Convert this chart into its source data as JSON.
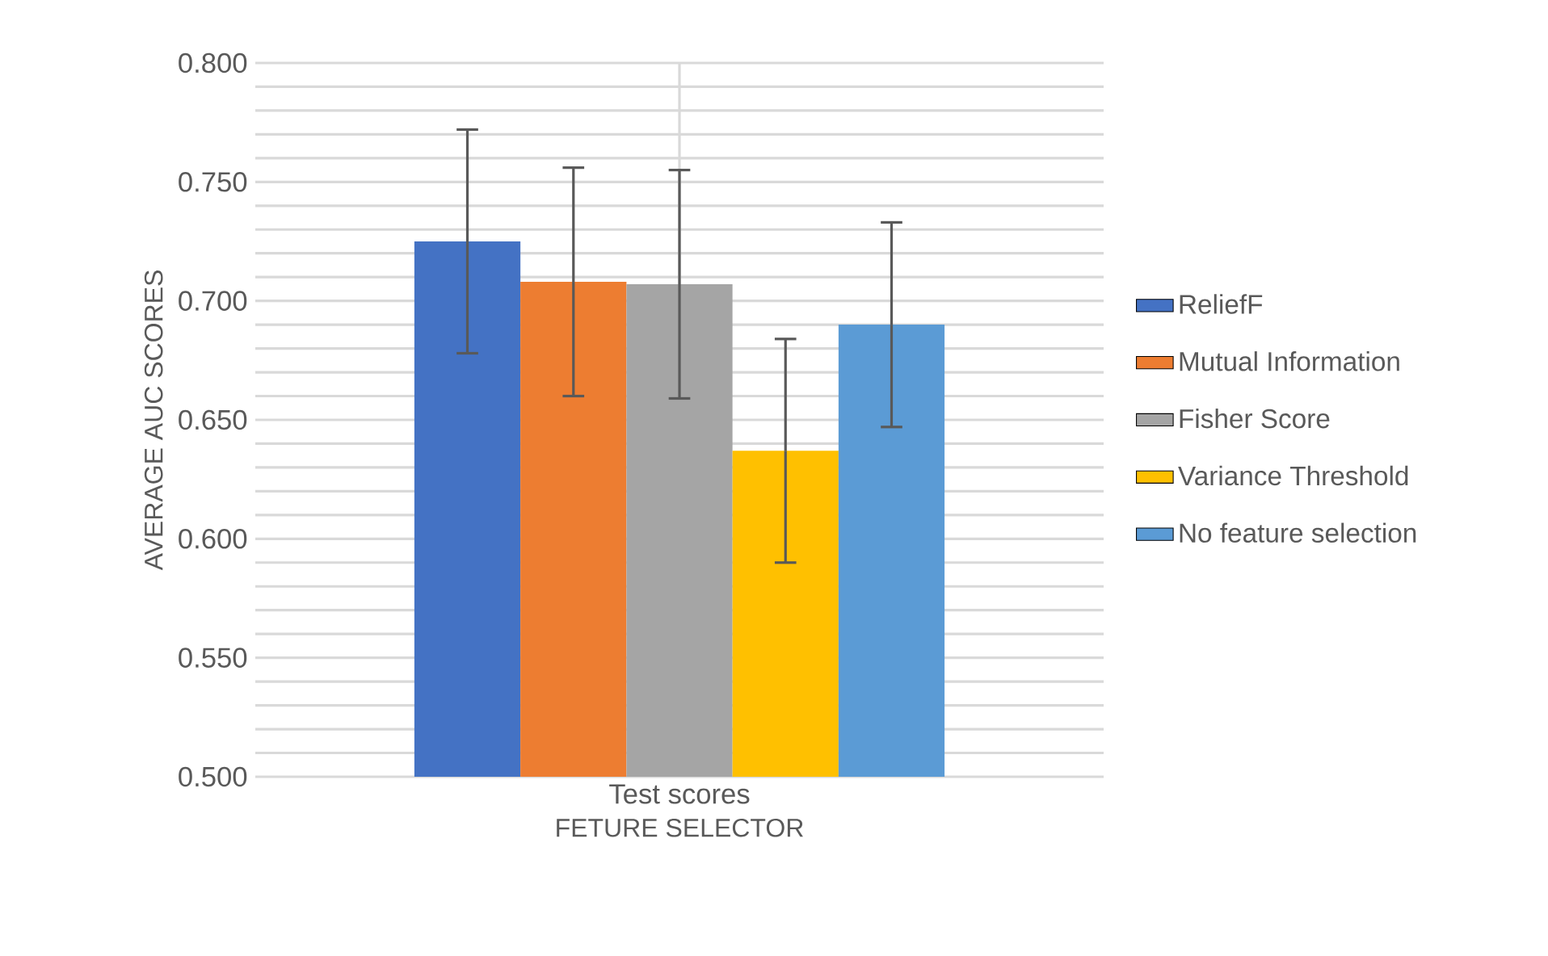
{
  "chart_data": {
    "type": "bar",
    "xlabel": "FETURE SELECTOR",
    "ylabel": "AVERAGE AUC SCORES",
    "categories": [
      "Test scores"
    ],
    "series": [
      {
        "name": "ReliefF",
        "color": "#4472c4",
        "values": [
          0.725
        ],
        "errors": [
          0.047
        ]
      },
      {
        "name": "Mutual Information",
        "color": "#ed7d31",
        "values": [
          0.708
        ],
        "errors": [
          0.048
        ]
      },
      {
        "name": "Fisher Score",
        "color": "#a5a5a5",
        "values": [
          0.707
        ],
        "errors": [
          0.048
        ]
      },
      {
        "name": "Variance Threshold",
        "color": "#ffc000",
        "values": [
          0.637
        ],
        "errors": [
          0.047
        ]
      },
      {
        "name": "No feature selection",
        "color": "#5b9bd5",
        "values": [
          0.69
        ],
        "errors": [
          0.043
        ]
      }
    ],
    "ylim": [
      0.5,
      0.8
    ],
    "yticks": [
      {
        "value": 0.5,
        "label": "0.500"
      },
      {
        "value": 0.51,
        "label": null
      },
      {
        "value": 0.52,
        "label": null
      },
      {
        "value": 0.53,
        "label": null
      },
      {
        "value": 0.54,
        "label": null
      },
      {
        "value": 0.55,
        "label": "0.550"
      },
      {
        "value": 0.56,
        "label": null
      },
      {
        "value": 0.57,
        "label": null
      },
      {
        "value": 0.58,
        "label": null
      },
      {
        "value": 0.59,
        "label": null
      },
      {
        "value": 0.6,
        "label": "0.600"
      },
      {
        "value": 0.61,
        "label": null
      },
      {
        "value": 0.62,
        "label": null
      },
      {
        "value": 0.63,
        "label": null
      },
      {
        "value": 0.64,
        "label": null
      },
      {
        "value": 0.65,
        "label": "0.650"
      },
      {
        "value": 0.66,
        "label": null
      },
      {
        "value": 0.67,
        "label": null
      },
      {
        "value": 0.68,
        "label": null
      },
      {
        "value": 0.69,
        "label": null
      },
      {
        "value": 0.7,
        "label": "0.700"
      },
      {
        "value": 0.71,
        "label": null
      },
      {
        "value": 0.72,
        "label": null
      },
      {
        "value": 0.73,
        "label": null
      },
      {
        "value": 0.74,
        "label": null
      },
      {
        "value": 0.75,
        "label": "0.750"
      },
      {
        "value": 0.76,
        "label": null
      },
      {
        "value": 0.77,
        "label": null
      },
      {
        "value": 0.78,
        "label": null
      },
      {
        "value": 0.79,
        "label": null
      },
      {
        "value": 0.8,
        "label": "0.800"
      }
    ],
    "grid": true,
    "legend": "right"
  }
}
